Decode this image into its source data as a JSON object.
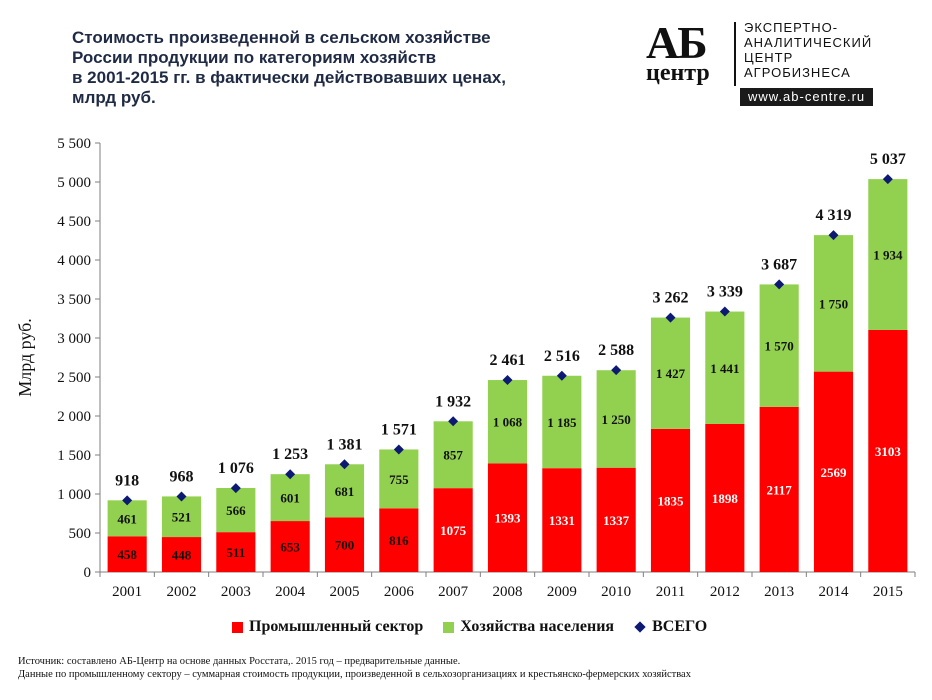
{
  "title_lines": [
    "Стоимость произведенной в сельском хозяйстве",
    "России продукции по категориям хозяйств",
    "в 2001-2015 гг. в фактически действовавших ценах,",
    "млрд руб."
  ],
  "logo": {
    "mark_top": "АБ",
    "mark_bottom": "центр",
    "text_lines": [
      "ЭКСПЕРТНО-",
      "АНАЛИТИЧЕСКИЙ",
      "ЦЕНТР",
      "АГРОБИЗНЕСА"
    ],
    "url": "www.ab-centre.ru"
  },
  "chart_data": {
    "type": "bar",
    "stacked": true,
    "categories": [
      "2001",
      "2002",
      "2003",
      "2004",
      "2005",
      "2006",
      "2007",
      "2008",
      "2009",
      "2010",
      "2011",
      "2012",
      "2013",
      "2014",
      "2015"
    ],
    "series": [
      {
        "name": "Промышленный сектор",
        "color": "#ff0000",
        "values": [
          458,
          448,
          511,
          653,
          700,
          816,
          1075,
          1393,
          1331,
          1337,
          1835,
          1898,
          2117,
          2569,
          3103
        ],
        "labels": [
          "458",
          "448",
          "511",
          "653",
          "700",
          "816",
          "1075",
          "1393",
          "1331",
          "1337",
          "1835",
          "1898",
          "2117",
          "2569",
          "3103"
        ]
      },
      {
        "name": "Хозяйства населения",
        "color": "#92d050",
        "values": [
          461,
          521,
          566,
          601,
          681,
          755,
          857,
          1068,
          1185,
          1250,
          1427,
          1441,
          1570,
          1750,
          1934
        ],
        "labels": [
          "461",
          "521",
          "566",
          "601",
          "681",
          "755",
          "857",
          "1 068",
          "1 185",
          "1 250",
          "1 427",
          "1 441",
          "1 570",
          "1 750",
          "1 934"
        ]
      }
    ],
    "total": {
      "name": "ВСЕГО",
      "color": "#0d1a73",
      "values": [
        918,
        968,
        1076,
        1253,
        1381,
        1571,
        1932,
        2461,
        2516,
        2588,
        3262,
        3339,
        3687,
        4319,
        5037
      ],
      "labels": [
        "918",
        "968",
        "1 076",
        "1 253",
        "1 381",
        "1 571",
        "1 932",
        "2 461",
        "2 516",
        "2 588",
        "3 262",
        "3 339",
        "3 687",
        "4 319",
        "5 037"
      ]
    },
    "ylabel": "Млрд руб.",
    "ylim": [
      0,
      5500
    ],
    "yticks": [
      0,
      500,
      1000,
      1500,
      2000,
      2500,
      3000,
      3500,
      4000,
      4500,
      5000,
      5500
    ],
    "ytick_labels": [
      "0",
      "500",
      "1 000",
      "1 500",
      "2 000",
      "2 500",
      "3 000",
      "3 500",
      "4 000",
      "4 500",
      "5 000",
      "5 500"
    ],
    "grid": false,
    "legend_position": "bottom"
  },
  "footer_lines": [
    "Источник: составлено АБ-Центр на основе данных Росстата,. 2015 год – предварительные данные.",
    "Данные по промышленному сектору – суммарная стоимость продукции, произведенной в сельхозорганизациях и крестьянско-фермерских хозяйствах"
  ]
}
